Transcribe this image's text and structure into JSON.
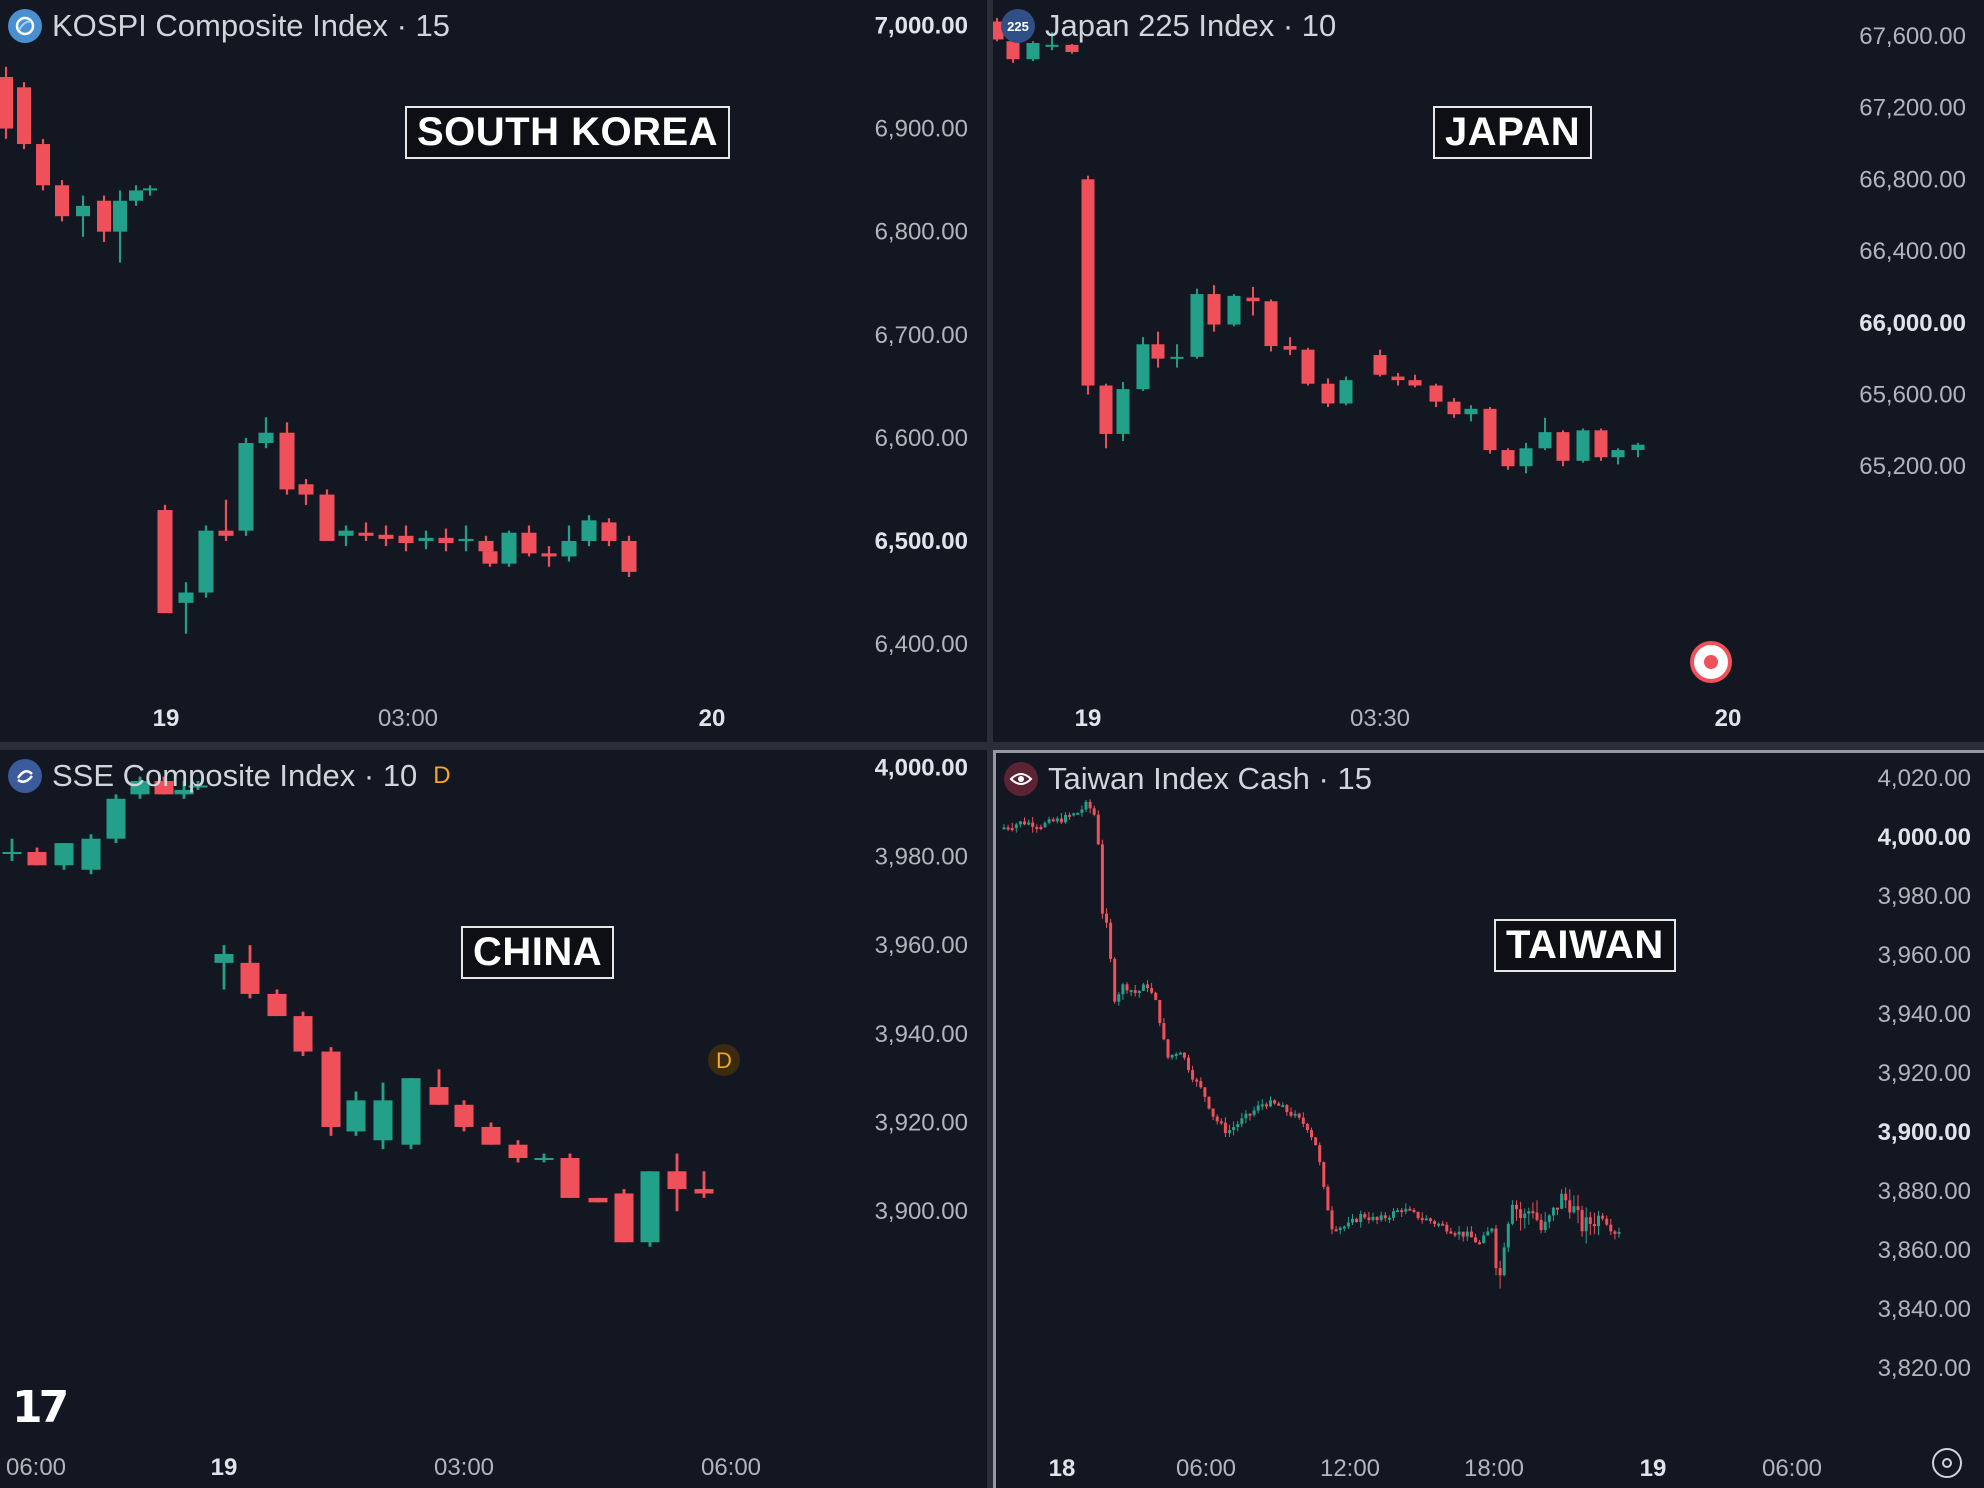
{
  "colors": {
    "up": "#22a08a",
    "down": "#f0505a",
    "background": "#131722",
    "text": "#b2b5be"
  },
  "panes": {
    "kr": {
      "title": "KOSPI Composite Index · 15",
      "logo_icon": "kospi-globe-icon",
      "country": "SOUTH KOREA",
      "price_labels": [
        "7,000.00",
        "6,900.00",
        "6,800.00",
        "6,700.00",
        "6,600.00",
        "6,500.00",
        "6,400.00"
      ],
      "time_labels": [
        "19",
        "03:00",
        "20"
      ]
    },
    "jp": {
      "title": "Japan 225 Index · 10",
      "logo_text": "225",
      "country": "JAPAN",
      "price_labels": [
        "67,600.00",
        "67,200.00",
        "66,800.00",
        "66,400.00",
        "66,000.00",
        "65,600.00",
        "65,200.00"
      ],
      "time_labels": [
        "19",
        "03:30",
        "20"
      ],
      "marker_icon": "live-record-icon"
    },
    "cn": {
      "title": "SSE Composite Index · 10",
      "logo_icon": "sse-swirl-icon",
      "badge": "D",
      "country": "CHINA",
      "price_labels": [
        "4,000.00",
        "3,980.00",
        "3,960.00",
        "3,940.00",
        "3,920.00",
        "3,900.00"
      ],
      "time_labels": [
        "06:00",
        "19",
        "03:00",
        "06:00"
      ]
    },
    "tw": {
      "title": "Taiwan Index Cash · 15",
      "logo_icon": "taiwan-eye-icon",
      "country": "TAIWAN",
      "price_labels": [
        "4,020.00",
        "4,000.00",
        "3,980.00",
        "3,960.00",
        "3,940.00",
        "3,920.00",
        "3,900.00",
        "3,880.00",
        "3,860.00",
        "3,840.00",
        "3,820.00"
      ],
      "time_labels": [
        "18",
        "06:00",
        "12:00",
        "18:00",
        "19",
        "06:00"
      ]
    }
  },
  "chart_data": [
    {
      "type": "candlestick",
      "title": "KOSPI Composite Index · 15",
      "ylim": [
        6370,
        7015
      ],
      "y_ticks": [
        7000,
        6900,
        6800,
        6700,
        6600,
        6500,
        6400
      ],
      "x_ticks": [
        "19",
        "03:00",
        "20"
      ],
      "candles_ohlc": [
        [
          6950,
          6960,
          6890,
          6900
        ],
        [
          6940,
          6945,
          6880,
          6885
        ],
        [
          6885,
          6890,
          6840,
          6845
        ],
        [
          6845,
          6850,
          6810,
          6815
        ],
        [
          6815,
          6835,
          6795,
          6825
        ],
        [
          6830,
          6835,
          6790,
          6800
        ],
        [
          6800,
          6840,
          6770,
          6830
        ],
        [
          6830,
          6845,
          6825,
          6840
        ],
        [
          6840,
          6845,
          6835,
          6842
        ],
        [
          6530,
          6535,
          6430,
          6430
        ],
        [
          6440,
          6460,
          6410,
          6450
        ],
        [
          6450,
          6515,
          6445,
          6510
        ],
        [
          6510,
          6540,
          6500,
          6505
        ],
        [
          6510,
          6600,
          6505,
          6595
        ],
        [
          6595,
          6620,
          6590,
          6605
        ],
        [
          6605,
          6615,
          6545,
          6550
        ],
        [
          6555,
          6560,
          6535,
          6545
        ],
        [
          6545,
          6550,
          6500,
          6500
        ],
        [
          6505,
          6515,
          6495,
          6510
        ],
        [
          6508,
          6518,
          6500,
          6505
        ],
        [
          6506,
          6515,
          6495,
          6502
        ],
        [
          6505,
          6515,
          6490,
          6498
        ],
        [
          6500,
          6510,
          6492,
          6503
        ],
        [
          6503,
          6512,
          6490,
          6498
        ],
        [
          6500,
          6515,
          6490,
          6502
        ],
        [
          6500,
          6505,
          6485,
          6490
        ],
        [
          6490,
          6495,
          6475,
          6478
        ],
        [
          6478,
          6510,
          6475,
          6508
        ],
        [
          6508,
          6515,
          6485,
          6488
        ],
        [
          6488,
          6495,
          6475,
          6485
        ],
        [
          6485,
          6515,
          6480,
          6500
        ],
        [
          6500,
          6525,
          6495,
          6520
        ],
        [
          6518,
          6522,
          6495,
          6500
        ],
        [
          6500,
          6505,
          6465,
          6470
        ]
      ]
    },
    {
      "type": "candlestick",
      "title": "Japan 225 Index · 10",
      "ylim": [
        64900,
        67800
      ],
      "y_ticks": [
        67600,
        67200,
        66800,
        66400,
        66000,
        65600,
        65200
      ],
      "x_ticks": [
        "19",
        "03:30",
        "20"
      ],
      "candles_ohlc": [
        [
          67680,
          67700,
          67570,
          67580
        ],
        [
          67570,
          67580,
          67450,
          67470
        ],
        [
          67470,
          67570,
          67460,
          67560
        ],
        [
          67540,
          67620,
          67520,
          67550
        ],
        [
          67550,
          67555,
          67500,
          67510
        ],
        [
          66800,
          66820,
          65600,
          65650
        ],
        [
          65650,
          65660,
          65300,
          65380
        ],
        [
          65380,
          65670,
          65340,
          65630
        ],
        [
          65630,
          65920,
          65620,
          65880
        ],
        [
          65880,
          65950,
          65750,
          65800
        ],
        [
          65800,
          65880,
          65750,
          65810
        ],
        [
          65810,
          66190,
          65800,
          66160
        ],
        [
          66160,
          66210,
          65950,
          65990
        ],
        [
          65990,
          66160,
          65980,
          66150
        ],
        [
          66140,
          66200,
          66040,
          66120
        ],
        [
          66120,
          66130,
          65840,
          65870
        ],
        [
          65870,
          65920,
          65820,
          65850
        ],
        [
          65850,
          65860,
          65650,
          65660
        ],
        [
          65660,
          65690,
          65530,
          65550
        ],
        [
          65550,
          65700,
          65540,
          65680
        ],
        [
          65820,
          65850,
          65700,
          65710
        ],
        [
          65700,
          65720,
          65650,
          65680
        ],
        [
          65680,
          65710,
          65640,
          65650
        ],
        [
          65650,
          65660,
          65530,
          65560
        ],
        [
          65560,
          65580,
          65470,
          65490
        ],
        [
          65490,
          65540,
          65450,
          65520
        ],
        [
          65520,
          65530,
          65270,
          65290
        ],
        [
          65290,
          65300,
          65180,
          65200
        ],
        [
          65200,
          65330,
          65160,
          65300
        ],
        [
          65300,
          65470,
          65290,
          65390
        ],
        [
          65390,
          65400,
          65200,
          65230
        ],
        [
          65230,
          65410,
          65220,
          65400
        ],
        [
          65400,
          65410,
          65230,
          65250
        ],
        [
          65250,
          65300,
          65210,
          65290
        ],
        [
          65290,
          65330,
          65250,
          65320
        ]
      ]
    },
    {
      "type": "candlestick",
      "title": "SSE Composite Index · 10",
      "ylim": [
        3889,
        4004
      ],
      "y_ticks": [
        4000,
        3980,
        3960,
        3940,
        3920,
        3900
      ],
      "x_ticks": [
        "06:00",
        "19",
        "03:00",
        "06:00"
      ],
      "candles_ohlc": [
        [
          3981,
          3984,
          3979,
          3981
        ],
        [
          3981,
          3982,
          3978,
          3978
        ],
        [
          3978,
          3983,
          3977,
          3983
        ],
        [
          3977,
          3985,
          3976,
          3984
        ],
        [
          3984,
          3994,
          3983,
          3993
        ],
        [
          3994,
          3998,
          3993,
          3997
        ],
        [
          3997,
          3998,
          3994,
          3994
        ],
        [
          3994,
          3997,
          3993,
          3995
        ],
        [
          3996,
          3997,
          3995,
          3996
        ],
        [
          3956,
          3960,
          3950,
          3958
        ],
        [
          3956,
          3960,
          3948,
          3949
        ],
        [
          3949,
          3950,
          3944,
          3944
        ],
        [
          3944,
          3945,
          3935,
          3936
        ],
        [
          3936,
          3937,
          3917,
          3919
        ],
        [
          3918,
          3927,
          3917,
          3925
        ],
        [
          3916,
          3929,
          3914,
          3925
        ],
        [
          3915,
          3930,
          3914,
          3930
        ],
        [
          3928,
          3932,
          3924,
          3924
        ],
        [
          3924,
          3925,
          3918,
          3919
        ],
        [
          3919,
          3920,
          3915,
          3915
        ],
        [
          3915,
          3916,
          3911,
          3912
        ],
        [
          3912,
          3913,
          3911,
          3912
        ],
        [
          3912,
          3913,
          3903,
          3903
        ],
        [
          3903,
          3903,
          3902,
          3902
        ],
        [
          3904,
          3905,
          3893,
          3893
        ],
        [
          3893,
          3909,
          3892,
          3909
        ],
        [
          3909,
          3913,
          3900,
          3905
        ],
        [
          3905,
          3909,
          3903,
          3904
        ]
      ]
    },
    {
      "type": "candlestick",
      "title": "Taiwan Index Cash · 15",
      "ylim": [
        3815,
        4025
      ],
      "y_ticks": [
        4020,
        4000,
        3980,
        3960,
        3940,
        3920,
        3900,
        3880,
        3860,
        3840,
        3820
      ],
      "x_ticks": [
        "18",
        "06:00",
        "12:00",
        "18:00",
        "19",
        "06:00"
      ],
      "description": "approx. 150 fifteen-minute candles: flat near 4003–4012, sharp drop to ~3950, slide to ~3905, brief rebound toward ~3910, then decline and consolidation around 3865–3875"
    }
  ]
}
